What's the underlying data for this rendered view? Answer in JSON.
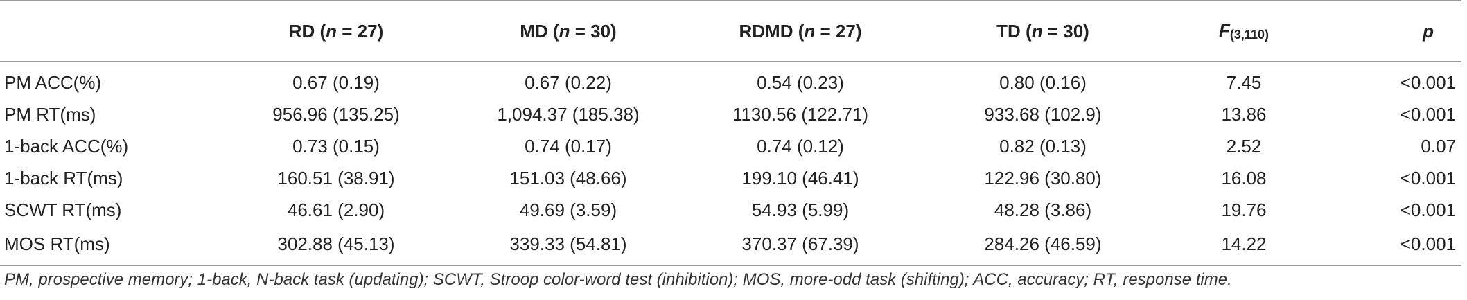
{
  "table": {
    "columns": [
      {
        "name": "RD",
        "n_label": "n",
        "n_value": " = 27"
      },
      {
        "name": "MD",
        "n_label": "n",
        "n_value": " = 30"
      },
      {
        "name": "RDMD",
        "n_label": "n",
        "n_value": " = 27"
      },
      {
        "name": "TD",
        "n_label": "n",
        "n_value": " = 30"
      }
    ],
    "f_header": {
      "letter": "F",
      "df": "(3,110)"
    },
    "p_header": "p",
    "rows": [
      {
        "label": "PM ACC(%)",
        "rd": "0.67 (0.19)",
        "md": "0.67 (0.22)",
        "rdmd": "0.54 (0.23)",
        "td": "0.80 (0.16)",
        "f": "7.45",
        "p": "<0.001"
      },
      {
        "label": "PM RT(ms)",
        "rd": "956.96 (135.25)",
        "md": "1,094.37 (185.38)",
        "rdmd": "1130.56 (122.71)",
        "td": "933.68 (102.9)",
        "f": "13.86",
        "p": "<0.001"
      },
      {
        "label": "1-back ACC(%)",
        "rd": "0.73 (0.15)",
        "md": "0.74 (0.17)",
        "rdmd": "0.74 (0.12)",
        "td": "0.82 (0.13)",
        "f": "2.52",
        "p": "0.07"
      },
      {
        "label": "1-back RT(ms)",
        "rd": "160.51 (38.91)",
        "md": "151.03 (48.66)",
        "rdmd": "199.10 (46.41)",
        "td": "122.96 (30.80)",
        "f": "16.08",
        "p": "<0.001"
      },
      {
        "label": "SCWT RT(ms)",
        "rd": "46.61 (2.90)",
        "md": "49.69 (3.59)",
        "rdmd": "54.93 (5.99)",
        "td": "48.28 (3.86)",
        "f": "19.76",
        "p": "<0.001"
      },
      {
        "label": "MOS RT(ms)",
        "rd": "302.88 (45.13)",
        "md": "339.33 (54.81)",
        "rdmd": "370.37 (67.39)",
        "td": "284.26 (46.59)",
        "f": "14.22",
        "p": "<0.001"
      }
    ]
  },
  "footnote": "PM, prospective memory; 1-back, N-back task (updating); SCWT, Stroop color-word test (inhibition); MOS, more-odd task (shifting); ACC, accuracy; RT, response time.",
  "colors": {
    "rule": "#9e9e9e",
    "text": "#222222"
  }
}
